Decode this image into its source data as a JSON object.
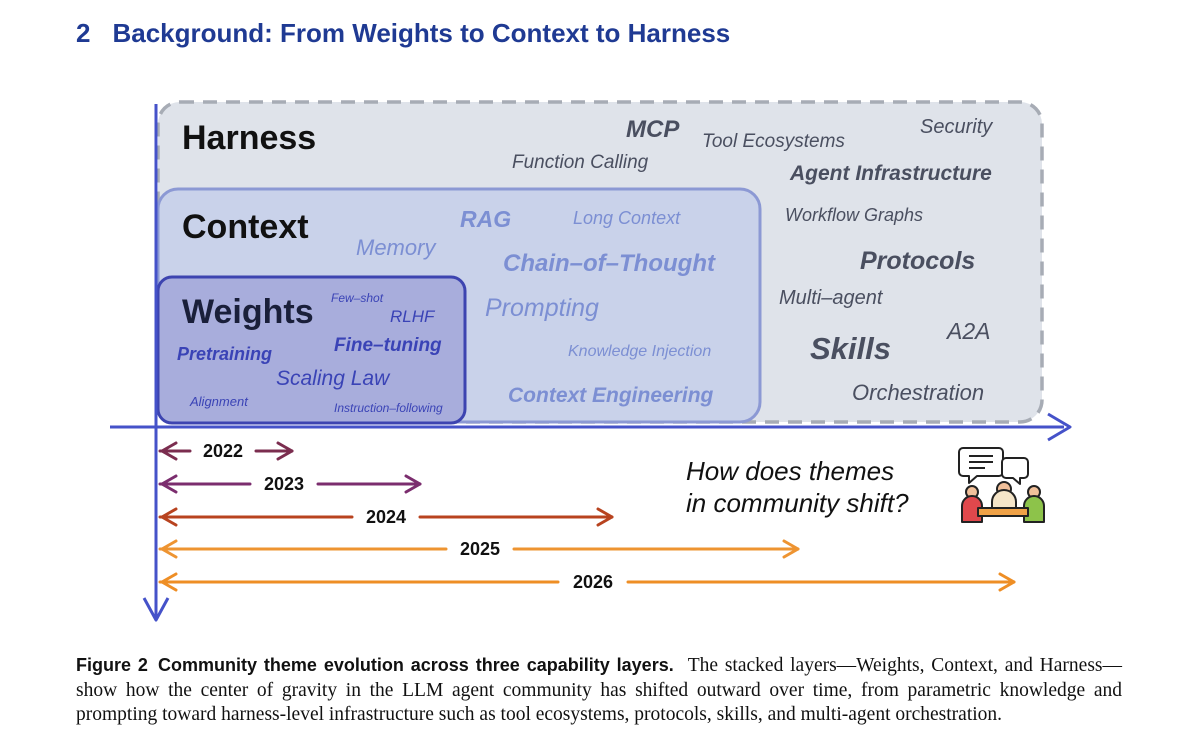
{
  "section": {
    "number": "2",
    "title": "Background: From Weights to Context to Harness"
  },
  "figure": {
    "layers": {
      "harness": {
        "label": "Harness",
        "terms": [
          "MCP",
          "Tool Ecosystems",
          "Security",
          "Function Calling",
          "Agent Infrastructure",
          "Workflow Graphs",
          "Protocols",
          "Multi–agent",
          "A2A",
          "Skills",
          "Orchestration"
        ]
      },
      "context": {
        "label": "Context",
        "terms": [
          "RAG",
          "Long Context",
          "Memory",
          "Chain–of–Thought",
          "Prompting",
          "Knowledge Injection",
          "Context Engineering"
        ]
      },
      "weights": {
        "label": "Weights",
        "terms": [
          "Few–shot",
          "RLHF",
          "Pretraining",
          "Fine–tuning",
          "Scaling Law",
          "Alignment",
          "Instruction–following"
        ]
      }
    },
    "years": [
      {
        "label": "2022",
        "color": "#7b2d4f"
      },
      {
        "label": "2023",
        "color": "#7b2d6e"
      },
      {
        "label": "2024",
        "color": "#b8431f"
      },
      {
        "label": "2025",
        "color": "#ee9431"
      },
      {
        "label": "2026",
        "color": "#ee8e25"
      }
    ],
    "question": [
      "How does themes",
      "in community shift?"
    ],
    "icon": "community-discussion-icon",
    "colors": {
      "axis": "#4552c9",
      "harness_fill": "#dfe3ea",
      "context_fill": "#c9d2ea",
      "weights_fill": "#a8addc",
      "weights_border": "#3d44b0"
    }
  },
  "caption": {
    "label": "Figure 2",
    "title": "Community theme evolution across three capability layers.",
    "text": "The stacked layers—Weights, Context, and Harness—show how the center of gravity in the LLM agent community has shifted outward over time, from parametric knowledge and prompting toward harness-level infrastructure such as tool ecosystems, protocols, skills, and multi-agent orchestration."
  }
}
